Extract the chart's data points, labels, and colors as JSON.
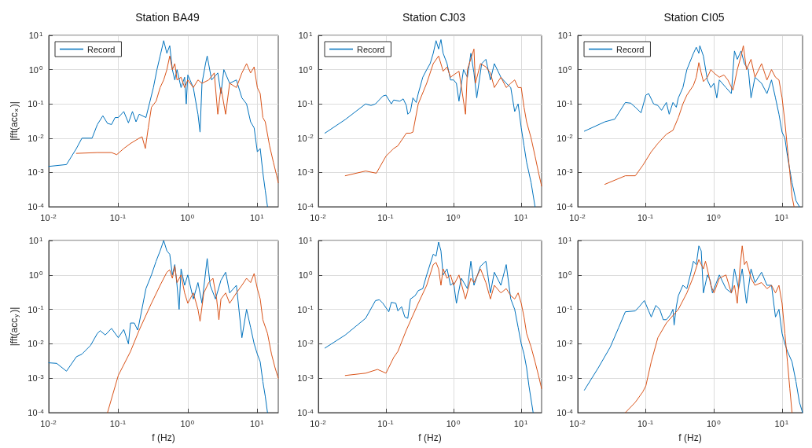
{
  "chart_data": [
    {
      "type": "line",
      "title": "Station BA49",
      "ylabel": "|fft(acc$_{x}$)|",
      "log": "xy",
      "grid": true,
      "legend": "top left",
      "xlim": [
        0.01,
        20
      ],
      "ylim": [
        0.0001,
        10
      ],
      "xticks": [
        {
          "value": 0.01,
          "label": "10$^{-2}$"
        },
        {
          "value": 0.1,
          "label": "10$^{-1}$"
        },
        {
          "value": 1,
          "label": "10$^{0}$"
        },
        {
          "value": 10,
          "label": "10$^{1}$"
        }
      ],
      "yticks": [
        {
          "value": 0.0001,
          "label": "10$^{-4}$"
        },
        {
          "value": 0.001,
          "label": "10$^{-3}$"
        },
        {
          "value": 0.01,
          "label": "10$^{-2}$"
        },
        {
          "value": 0.1,
          "label": "10$^{-1}$"
        },
        {
          "value": 1,
          "label": "10$^{0}$"
        },
        {
          "value": 10,
          "label": "10$^{1}$"
        }
      ],
      "series": [
        {
          "name": "Record",
          "color": "#0072bd",
          "x": [
            0.01,
            0.018,
            0.025,
            0.03,
            0.042,
            0.05,
            0.06,
            0.07,
            0.08,
            0.09,
            0.1,
            0.12,
            0.14,
            0.16,
            0.18,
            0.2,
            0.25,
            0.28,
            0.32,
            0.36,
            0.4,
            0.45,
            0.5,
            0.55,
            0.6,
            0.65,
            0.7,
            0.8,
            0.9,
            0.95,
            1.0,
            1.2,
            1.4,
            1.5,
            1.6,
            1.8,
            1.9,
            2.2,
            2.7,
            3.0,
            3.3,
            4,
            5,
            6,
            7,
            8,
            9,
            10,
            11,
            12,
            13,
            14
          ],
          "values": [
            0.0015,
            0.0017,
            0.005,
            0.01,
            0.01,
            0.025,
            0.045,
            0.027,
            0.025,
            0.04,
            0.04,
            0.06,
            0.028,
            0.06,
            0.03,
            0.05,
            0.04,
            0.1,
            0.3,
            1.0,
            2.5,
            7,
            3,
            5,
            1.0,
            0.5,
            1.0,
            0.3,
            0.6,
            0.1,
            0.7,
            0.3,
            0.05,
            0.015,
            0.4,
            1.5,
            2.5,
            0.5,
            0.8,
            0.2,
            1.0,
            0.4,
            0.5,
            0.15,
            0.1,
            0.03,
            0.02,
            0.004,
            0.005,
            0.001,
            0.0003,
            0.0001
          ]
        },
        {
          "color": "#d95319",
          "x": [
            0.025,
            0.05,
            0.08,
            0.095,
            0.12,
            0.15,
            0.2,
            0.22,
            0.245,
            0.27,
            0.3,
            0.35,
            0.4,
            0.45,
            0.5,
            0.55,
            0.6,
            0.65,
            0.7,
            0.8,
            0.9,
            1.0,
            1.2,
            1.4,
            1.6,
            2.0,
            2.4,
            2.7,
            3,
            3.5,
            4,
            5,
            6,
            7,
            8,
            9,
            10,
            11,
            12,
            13,
            15,
            17,
            19,
            20
          ],
          "values": [
            0.0036,
            0.0038,
            0.0038,
            0.0033,
            0.005,
            0.007,
            0.01,
            0.011,
            0.005,
            0.02,
            0.08,
            0.12,
            0.3,
            0.5,
            1.0,
            2.5,
            1.0,
            1.5,
            0.5,
            0.6,
            0.3,
            0.5,
            0.3,
            0.5,
            0.4,
            0.5,
            0.8,
            0.05,
            0.3,
            0.05,
            0.4,
            0.3,
            0.8,
            1.5,
            0.8,
            1.2,
            0.3,
            0.2,
            0.04,
            0.03,
            0.006,
            0.002,
            0.0008,
            0.0005
          ]
        }
      ]
    },
    {
      "type": "line",
      "title": "Station CJ03",
      "log": "xy",
      "grid": true,
      "legend": "top left",
      "xlim": [
        0.01,
        20
      ],
      "ylim": [
        0.0001,
        10
      ],
      "xticks": [
        {
          "value": 0.01,
          "label": "10$^{-2}$"
        },
        {
          "value": 0.1,
          "label": "10$^{-1}$"
        },
        {
          "value": 1,
          "label": "10$^{0}$"
        },
        {
          "value": 10,
          "label": "10$^{1}$"
        }
      ],
      "yticks": [
        {
          "value": 0.0001,
          "label": "10$^{-4}$"
        },
        {
          "value": 0.001,
          "label": "10$^{-3}$"
        },
        {
          "value": 0.01,
          "label": "10$^{-2}$"
        },
        {
          "value": 0.1,
          "label": "10$^{-1}$"
        },
        {
          "value": 1,
          "label": "10$^{0}$"
        },
        {
          "value": 10,
          "label": "10$^{1}$"
        }
      ],
      "series": [
        {
          "name": "Record",
          "color": "#0072bd",
          "x": [
            0.0125,
            0.025,
            0.05,
            0.06,
            0.07,
            0.09,
            0.1,
            0.12,
            0.13,
            0.16,
            0.18,
            0.2,
            0.21,
            0.23,
            0.25,
            0.28,
            0.3,
            0.35,
            0.4,
            0.45,
            0.5,
            0.55,
            0.6,
            0.65,
            0.7,
            0.8,
            0.9,
            1.0,
            1.1,
            1.2,
            1.4,
            1.6,
            1.8,
            2.0,
            2.2,
            2.6,
            3,
            3.5,
            4,
            5,
            6,
            7,
            8,
            9,
            10,
            11,
            12,
            14,
            16
          ],
          "values": [
            0.014,
            0.035,
            0.1,
            0.09,
            0.1,
            0.17,
            0.18,
            0.1,
            0.13,
            0.12,
            0.14,
            0.09,
            0.05,
            0.06,
            0.15,
            0.11,
            0.2,
            0.6,
            1.0,
            1.5,
            3,
            7,
            4,
            7.5,
            3,
            1.5,
            0.5,
            0.5,
            0.4,
            0.12,
            1.0,
            0.6,
            3,
            0.8,
            0.15,
            1.5,
            2,
            0.5,
            1.5,
            0.6,
            0.4,
            0.3,
            0.06,
            0.1,
            0.02,
            0.006,
            0.002,
            0.0005,
            0.0001
          ]
        },
        {
          "color": "#d95319",
          "x": [
            0.025,
            0.05,
            0.072,
            0.1,
            0.13,
            0.15,
            0.2,
            0.23,
            0.25,
            0.3,
            0.4,
            0.5,
            0.6,
            0.7,
            0.8,
            0.9,
            1.0,
            1.2,
            1.5,
            1.6,
            2,
            2.1,
            2.5,
            3,
            3.5,
            4,
            5,
            6,
            7,
            8,
            9,
            10,
            11,
            12,
            14,
            16,
            18,
            20
          ],
          "values": [
            0.0008,
            0.0011,
            0.00095,
            0.003,
            0.005,
            0.006,
            0.014,
            0.014,
            0.015,
            0.1,
            0.4,
            1.5,
            2.5,
            0.9,
            1.2,
            0.6,
            0.7,
            0.9,
            0.05,
            1.0,
            4,
            0.4,
            1.5,
            1.2,
            0.8,
            0.3,
            0.6,
            0.3,
            0.4,
            0.5,
            0.3,
            0.3,
            0.08,
            0.03,
            0.01,
            0.003,
            0.001,
            0.0004
          ]
        }
      ]
    },
    {
      "type": "line",
      "title": "Station CI05",
      "log": "xy",
      "grid": true,
      "legend": "top left",
      "xlim": [
        0.01,
        20
      ],
      "ylim": [
        0.0001,
        10
      ],
      "xticks": [
        {
          "value": 0.01,
          "label": "10$^{-2}$"
        },
        {
          "value": 0.1,
          "label": "10$^{-1}$"
        },
        {
          "value": 1,
          "label": "10$^{0}$"
        },
        {
          "value": 10,
          "label": "10$^{1}$"
        }
      ],
      "yticks": [
        {
          "value": 0.0001,
          "label": "10$^{-4}$"
        },
        {
          "value": 0.001,
          "label": "10$^{-3}$"
        },
        {
          "value": 0.01,
          "label": "10$^{-2}$"
        },
        {
          "value": 0.1,
          "label": "10$^{-1}$"
        },
        {
          "value": 1,
          "label": "10$^{0}$"
        },
        {
          "value": 10,
          "label": "10$^{1}$"
        }
      ],
      "series": [
        {
          "name": "Record",
          "color": "#0072bd",
          "x": [
            0.0125,
            0.025,
            0.035,
            0.05,
            0.06,
            0.07,
            0.085,
            0.1,
            0.11,
            0.13,
            0.15,
            0.17,
            0.2,
            0.22,
            0.25,
            0.28,
            0.3,
            0.35,
            0.4,
            0.5,
            0.55,
            0.6,
            0.62,
            0.7,
            0.8,
            0.9,
            1.0,
            1.1,
            1.2,
            1.5,
            1.8,
            2.0,
            2.2,
            2.5,
            2.8,
            3.2,
            3.5,
            4,
            5,
            6,
            7,
            8,
            9,
            10,
            11,
            12,
            14,
            16,
            18
          ],
          "values": [
            0.016,
            0.03,
            0.036,
            0.11,
            0.105,
            0.08,
            0.055,
            0.18,
            0.2,
            0.1,
            0.09,
            0.065,
            0.11,
            0.05,
            0.11,
            0.08,
            0.15,
            0.3,
            1.0,
            3,
            4.5,
            3,
            5,
            2.5,
            0.5,
            0.3,
            0.4,
            0.15,
            0.5,
            0.3,
            0.2,
            3.5,
            2,
            3.5,
            1.5,
            1.0,
            0.15,
            0.6,
            0.4,
            0.2,
            0.5,
            0.15,
            0.05,
            0.015,
            0.01,
            0.003,
            0.0005,
            0.00015,
            0.0001
          ]
        },
        {
          "color": "#d95319",
          "x": [
            0.025,
            0.05,
            0.07,
            0.09,
            0.12,
            0.15,
            0.2,
            0.25,
            0.3,
            0.35,
            0.4,
            0.5,
            0.55,
            0.6,
            0.65,
            0.7,
            0.8,
            0.9,
            1.0,
            1.2,
            1.4,
            1.6,
            1.9,
            2.2,
            2.5,
            2.7,
            3,
            3.5,
            4,
            5,
            6,
            7,
            8,
            9,
            10,
            11,
            12,
            13,
            14,
            15
          ],
          "values": [
            0.00045,
            0.0008,
            0.0008,
            0.0016,
            0.004,
            0.007,
            0.013,
            0.017,
            0.04,
            0.1,
            0.18,
            0.35,
            0.6,
            1.6,
            0.8,
            0.45,
            0.6,
            1.0,
            0.8,
            0.6,
            0.7,
            0.5,
            0.25,
            1.0,
            2.5,
            5,
            1.0,
            2,
            0.6,
            1.5,
            0.5,
            1.0,
            0.6,
            0.5,
            0.15,
            0.03,
            0.005,
            0.001,
            0.0002,
            0.0001
          ]
        }
      ]
    },
    {
      "type": "line",
      "xlabel": "f (Hz)",
      "ylabel": "|fft(acc$_{y}$)|",
      "log": "xy",
      "grid": true,
      "xlim": [
        0.01,
        20
      ],
      "ylim": [
        0.0001,
        10
      ],
      "xticks": [
        {
          "value": 0.01,
          "label": "10$^{-2}$"
        },
        {
          "value": 0.1,
          "label": "10$^{-1}$"
        },
        {
          "value": 1,
          "label": "10$^{0}$"
        },
        {
          "value": 10,
          "label": "10$^{1}$"
        }
      ],
      "yticks": [
        {
          "value": 0.0001,
          "label": "10$^{-4}$"
        },
        {
          "value": 0.001,
          "label": "10$^{-3}$"
        },
        {
          "value": 0.01,
          "label": "10$^{-2}$"
        },
        {
          "value": 0.1,
          "label": "10$^{-1}$"
        },
        {
          "value": 1,
          "label": "10$^{0}$"
        },
        {
          "value": 10,
          "label": "10$^{1}$"
        }
      ],
      "series": [
        {
          "color": "#0072bd",
          "x": [
            0.01,
            0.013,
            0.018,
            0.025,
            0.03,
            0.04,
            0.05,
            0.055,
            0.065,
            0.08,
            0.1,
            0.12,
            0.14,
            0.15,
            0.17,
            0.19,
            0.2,
            0.25,
            0.3,
            0.35,
            0.4,
            0.45,
            0.5,
            0.55,
            0.6,
            0.65,
            0.7,
            0.75,
            0.8,
            0.9,
            1.0,
            1.2,
            1.4,
            1.6,
            1.9,
            2.1,
            2.5,
            3,
            3.5,
            4,
            5,
            6,
            7,
            8,
            9,
            10,
            11,
            12,
            13,
            14
          ],
          "values": [
            0.0028,
            0.0027,
            0.0016,
            0.0042,
            0.005,
            0.009,
            0.02,
            0.024,
            0.018,
            0.028,
            0.015,
            0.026,
            0.01,
            0.04,
            0.04,
            0.025,
            0.04,
            0.4,
            1.0,
            2.5,
            5,
            10,
            5,
            4,
            1.0,
            2,
            0.5,
            0.1,
            1.5,
            0.5,
            1.0,
            0.2,
            0.6,
            0.15,
            3,
            0.5,
            0.2,
            0.7,
            1.2,
            0.3,
            0.5,
            0.015,
            0.1,
            0.03,
            0.01,
            0.005,
            0.003,
            0.0008,
            0.0003,
            0.0001
          ]
        },
        {
          "color": "#d95319",
          "x": [
            0.07,
            0.1,
            0.15,
            0.2,
            0.3,
            0.4,
            0.5,
            0.55,
            0.6,
            0.65,
            0.7,
            0.8,
            0.9,
            1.0,
            1.2,
            1.4,
            1.5,
            1.7,
            2,
            2.3,
            2.6,
            2.8,
            3,
            3.5,
            4,
            5,
            6,
            7,
            8,
            9,
            10,
            11,
            12,
            14,
            16,
            18,
            20
          ],
          "values": [
            0.0001,
            0.0012,
            0.006,
            0.025,
            0.15,
            0.5,
            1.2,
            1.4,
            0.8,
            1.8,
            0.6,
            1.0,
            0.3,
            0.15,
            0.3,
            0.1,
            0.045,
            0.3,
            0.6,
            0.8,
            0.2,
            0.05,
            0.2,
            0.3,
            0.15,
            0.3,
            0.5,
            0.8,
            0.6,
            1.1,
            0.4,
            0.2,
            0.05,
            0.02,
            0.005,
            0.002,
            0.001
          ]
        }
      ]
    },
    {
      "type": "line",
      "xlabel": "f (Hz)",
      "log": "xy",
      "grid": true,
      "xlim": [
        0.01,
        20
      ],
      "ylim": [
        0.0001,
        10
      ],
      "xticks": [
        {
          "value": 0.01,
          "label": "10$^{-2}$"
        },
        {
          "value": 0.1,
          "label": "10$^{-1}$"
        },
        {
          "value": 1,
          "label": "10$^{0}$"
        },
        {
          "value": 10,
          "label": "10$^{1}$"
        }
      ],
      "yticks": [
        {
          "value": 0.0001,
          "label": "10$^{-4}$"
        },
        {
          "value": 0.001,
          "label": "10$^{-3}$"
        },
        {
          "value": 0.01,
          "label": "10$^{-2}$"
        },
        {
          "value": 0.1,
          "label": "10$^{-1}$"
        },
        {
          "value": 1,
          "label": "10$^{0}$"
        },
        {
          "value": 10,
          "label": "10$^{1}$"
        }
      ],
      "series": [
        {
          "color": "#0072bd",
          "x": [
            0.0125,
            0.025,
            0.05,
            0.07,
            0.08,
            0.09,
            0.11,
            0.12,
            0.14,
            0.15,
            0.17,
            0.19,
            0.21,
            0.23,
            0.27,
            0.3,
            0.35,
            0.4,
            0.5,
            0.55,
            0.6,
            0.65,
            0.7,
            0.8,
            0.9,
            1.0,
            1.1,
            1.3,
            1.6,
            1.8,
            2.0,
            2.5,
            3,
            3.5,
            4,
            5,
            6,
            7,
            8,
            9,
            10,
            11,
            12,
            13,
            15
          ],
          "values": [
            0.0075,
            0.018,
            0.055,
            0.18,
            0.19,
            0.15,
            0.085,
            0.16,
            0.15,
            0.09,
            0.12,
            0.06,
            0.055,
            0.2,
            0.25,
            0.35,
            0.4,
            1.0,
            4,
            3.5,
            9,
            5,
            1.0,
            1.5,
            0.5,
            0.6,
            0.15,
            0.8,
            0.4,
            2.5,
            0.5,
            1.8,
            2.5,
            0.3,
            1.2,
            0.5,
            2,
            0.2,
            0.1,
            0.03,
            0.01,
            0.005,
            0.002,
            0.0006,
            0.0001
          ]
        },
        {
          "color": "#d95319",
          "x": [
            0.025,
            0.05,
            0.075,
            0.1,
            0.13,
            0.15,
            0.2,
            0.3,
            0.4,
            0.5,
            0.55,
            0.6,
            0.65,
            0.7,
            0.8,
            0.9,
            1.0,
            1.2,
            1.5,
            1.8,
            2,
            2.5,
            3,
            3.5,
            4,
            5,
            6,
            7,
            8,
            9,
            10,
            11,
            12,
            14,
            16,
            18,
            20
          ],
          "values": [
            0.0012,
            0.0014,
            0.0018,
            0.0014,
            0.004,
            0.006,
            0.025,
            0.15,
            0.5,
            2,
            2.3,
            1.5,
            0.5,
            1.5,
            0.8,
            1.0,
            0.5,
            1.0,
            0.2,
            0.8,
            0.6,
            1.5,
            0.6,
            0.2,
            0.5,
            0.3,
            0.4,
            0.25,
            0.2,
            0.3,
            0.15,
            0.06,
            0.02,
            0.008,
            0.003,
            0.0012,
            0.0005
          ]
        }
      ]
    },
    {
      "type": "line",
      "xlabel": "f (Hz)",
      "log": "xy",
      "grid": true,
      "xlim": [
        0.01,
        20
      ],
      "ylim": [
        0.0001,
        10
      ],
      "xticks": [
        {
          "value": 0.01,
          "label": "10$^{-2}$"
        },
        {
          "value": 0.1,
          "label": "10$^{-1}$"
        },
        {
          "value": 1,
          "label": "10$^{0}$"
        },
        {
          "value": 10,
          "label": "10$^{1}$"
        }
      ],
      "yticks": [
        {
          "value": 0.0001,
          "label": "10$^{-4}$"
        },
        {
          "value": 0.001,
          "label": "10$^{-3}$"
        },
        {
          "value": 0.01,
          "label": "10$^{-2}$"
        },
        {
          "value": 0.1,
          "label": "10$^{-1}$"
        },
        {
          "value": 1,
          "label": "10$^{0}$"
        },
        {
          "value": 10,
          "label": "10$^{1}$"
        }
      ],
      "series": [
        {
          "color": "#0072bd",
          "x": [
            0.0125,
            0.02,
            0.03,
            0.04,
            0.05,
            0.07,
            0.08,
            0.095,
            0.11,
            0.12,
            0.14,
            0.16,
            0.18,
            0.2,
            0.23,
            0.25,
            0.26,
            0.28,
            0.3,
            0.35,
            0.4,
            0.45,
            0.5,
            0.55,
            0.6,
            0.65,
            0.7,
            0.8,
            0.88,
            0.95,
            1.2,
            1.5,
            1.8,
            2.0,
            2.3,
            2.6,
            3,
            3.5,
            4,
            5,
            6,
            7,
            8,
            9,
            10,
            11,
            12,
            14,
            16,
            18,
            20
          ],
          "values": [
            0.00045,
            0.002,
            0.008,
            0.03,
            0.085,
            0.09,
            0.12,
            0.18,
            0.09,
            0.06,
            0.13,
            0.1,
            0.05,
            0.05,
            0.07,
            0.1,
            0.035,
            0.12,
            0.25,
            0.5,
            0.4,
            1.0,
            2.5,
            2,
            7,
            5,
            0.3,
            1.0,
            0.7,
            0.3,
            1.0,
            0.4,
            0.3,
            1.5,
            0.4,
            1.5,
            0.15,
            1.5,
            0.6,
            1.2,
            0.5,
            0.5,
            0.06,
            0.1,
            0.02,
            0.01,
            0.006,
            0.003,
            0.0008,
            0.0002,
            0.0001
          ]
        },
        {
          "color": "#d95319",
          "x": [
            0.05,
            0.07,
            0.09,
            0.1,
            0.12,
            0.15,
            0.2,
            0.3,
            0.4,
            0.5,
            0.6,
            0.7,
            0.75,
            0.8,
            0.9,
            1.0,
            1.2,
            1.5,
            1.8,
            2.0,
            2.2,
            2.4,
            2.6,
            2.8,
            3,
            3.5,
            4,
            5,
            6,
            7,
            8,
            9,
            10,
            11,
            12,
            13,
            14
          ],
          "values": [
            0.0001,
            0.0002,
            0.0004,
            0.0006,
            0.003,
            0.015,
            0.04,
            0.1,
            0.3,
            0.9,
            2.8,
            1.5,
            2.5,
            1.5,
            0.5,
            0.3,
            0.8,
            1.0,
            0.3,
            0.5,
            0.15,
            1.5,
            7,
            2,
            2.5,
            0.8,
            0.5,
            0.6,
            0.4,
            0.5,
            0.3,
            0.5,
            0.15,
            0.02,
            0.003,
            0.0005,
            0.0001
          ]
        }
      ]
    }
  ]
}
